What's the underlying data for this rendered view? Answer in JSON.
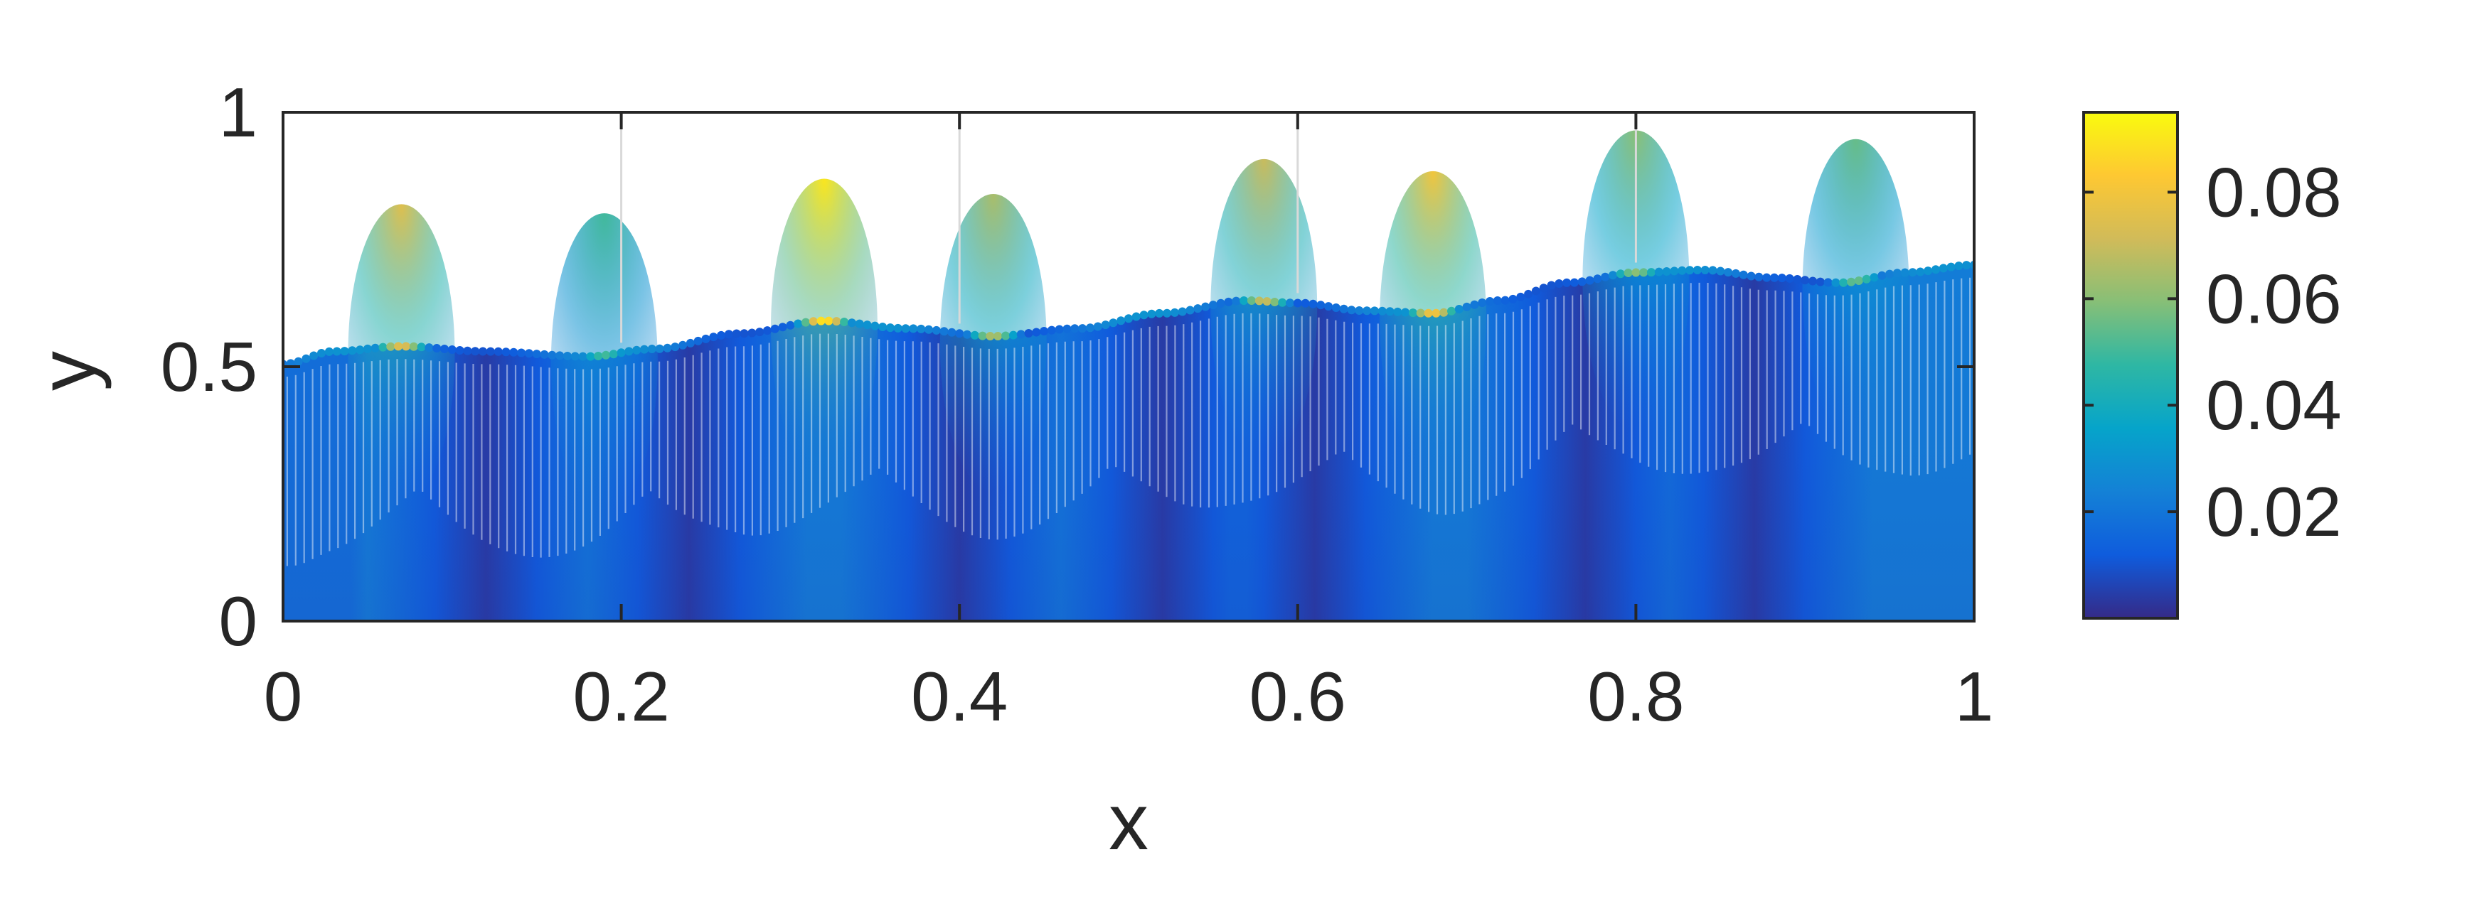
{
  "chart_data": {
    "type": "scatter",
    "description_kind": "free-surface particle field colored by magnitude",
    "xlabel": "x",
    "ylabel": "y",
    "xlim": [
      0,
      1
    ],
    "ylim": [
      0,
      1
    ],
    "x_ticks": [
      "0",
      "0.2",
      "0.4",
      "0.6",
      "0.8",
      "1"
    ],
    "y_ticks": [
      "0",
      "0.5",
      "1"
    ],
    "grid": "vertical only",
    "colorbar": {
      "range": [
        0,
        0.095
      ],
      "tick_labels": [
        "0.02",
        "0.04",
        "0.06",
        "0.08"
      ],
      "tick_values": [
        0.02,
        0.04,
        0.06,
        0.08
      ],
      "colormap": "parula",
      "colors": [
        "#352a87",
        "#0f5cdd",
        "#1481d6",
        "#06a4ca",
        "#2eb7a4",
        "#87bf77",
        "#d1bb59",
        "#fec832",
        "#f9fb0e"
      ]
    },
    "surface": {
      "x": [
        0,
        0.03,
        0.07,
        0.12,
        0.18,
        0.22,
        0.27,
        0.32,
        0.37,
        0.42,
        0.47,
        0.52,
        0.57,
        0.6,
        0.64,
        0.68,
        0.72,
        0.76,
        0.8,
        0.84,
        0.88,
        0.92,
        0.96,
        1.0
      ],
      "y": [
        0.505,
        0.53,
        0.54,
        0.53,
        0.52,
        0.535,
        0.565,
        0.59,
        0.575,
        0.56,
        0.575,
        0.605,
        0.63,
        0.625,
        0.61,
        0.605,
        0.63,
        0.665,
        0.685,
        0.69,
        0.675,
        0.665,
        0.685,
        0.7
      ]
    },
    "hotspots": {
      "x": [
        0.07,
        0.19,
        0.32,
        0.42,
        0.58,
        0.68,
        0.8,
        0.93
      ],
      "value": [
        0.075,
        0.05,
        0.09,
        0.065,
        0.07,
        0.08,
        0.06,
        0.055
      ]
    },
    "dark_bands_x": [
      0.12,
      0.24,
      0.4,
      0.52,
      0.61,
      0.77,
      0.87
    ]
  }
}
